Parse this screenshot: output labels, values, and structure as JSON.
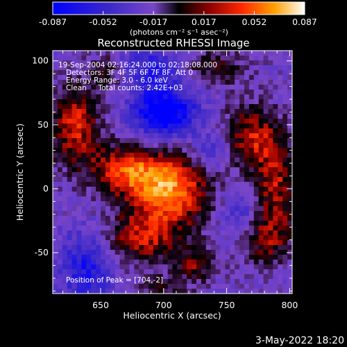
{
  "chart_data": {
    "type": "heatmap",
    "title": "Reconstructed RHESSI Image",
    "xlabel": "Heliocentric X (arcsec)",
    "ylabel": "Heliocentric Y (arcsec)",
    "xlim": [
      612,
      802
    ],
    "ylim": [
      -82,
      108
    ],
    "xticks": [
      650,
      700,
      750,
      800
    ],
    "yticks": [
      -50,
      0,
      50,
      100
    ],
    "colorbar": {
      "range": [
        -0.087,
        0.087
      ],
      "ticks": [
        "-0.087",
        "-0.052",
        "-0.017",
        "0.017",
        "0.052",
        "0.087"
      ],
      "unit_label": "(photons cm⁻² s⁻¹ asec⁻²)"
    },
    "annotations": [
      "19-Sep-2004 02:16:24.000 to 02:18:08.000",
      "Detectors: 3F 4F 5F 6F 7F 8F, Att 0",
      "Energy Range: 3.0 - 6.0 keV",
      "Clean     Total counts: 2.42E+03"
    ],
    "peak_label": "Position of Peak = [704,-2]",
    "peak": [
      704,
      -2
    ],
    "peak_value": 0.087,
    "sources": [
      {
        "x": 704,
        "y": -2,
        "sx": 22,
        "sy": 20,
        "a": 0.085
      },
      {
        "x": 670,
        "y": 15,
        "sx": 20,
        "sy": 14,
        "a": 0.06
      },
      {
        "x": 630,
        "y": 50,
        "sx": 14,
        "sy": 22,
        "a": 0.06
      },
      {
        "x": 655,
        "y": 90,
        "sx": 10,
        "sy": 10,
        "a": 0.035
      },
      {
        "x": 680,
        "y": -40,
        "sx": 22,
        "sy": 14,
        "a": 0.05
      },
      {
        "x": 725,
        "y": -60,
        "sx": 12,
        "sy": 10,
        "a": 0.04
      },
      {
        "x": 700,
        "y": -78,
        "sx": 12,
        "sy": 6,
        "a": 0.03
      },
      {
        "x": 770,
        "y": 40,
        "sx": 16,
        "sy": 18,
        "a": 0.055
      },
      {
        "x": 790,
        "y": 0,
        "sx": 12,
        "sy": 25,
        "a": 0.05
      },
      {
        "x": 780,
        "y": -40,
        "sx": 14,
        "sy": 14,
        "a": 0.04
      },
      {
        "x": 740,
        "y": 95,
        "sx": 18,
        "sy": 10,
        "a": 0.035
      },
      {
        "x": 700,
        "y": 60,
        "sx": 18,
        "sy": 14,
        "a": -0.08
      },
      {
        "x": 690,
        "y": 95,
        "sx": 20,
        "sy": 10,
        "a": -0.04
      },
      {
        "x": 640,
        "y": -60,
        "sx": 15,
        "sy": 20,
        "a": -0.05
      },
      {
        "x": 740,
        "y": 30,
        "sx": 10,
        "sy": 10,
        "a": -0.035
      },
      {
        "x": 760,
        "y": -20,
        "sx": 10,
        "sy": 14,
        "a": -0.03
      }
    ]
  },
  "footer": {
    "date": "3-May-2022 18:20"
  }
}
